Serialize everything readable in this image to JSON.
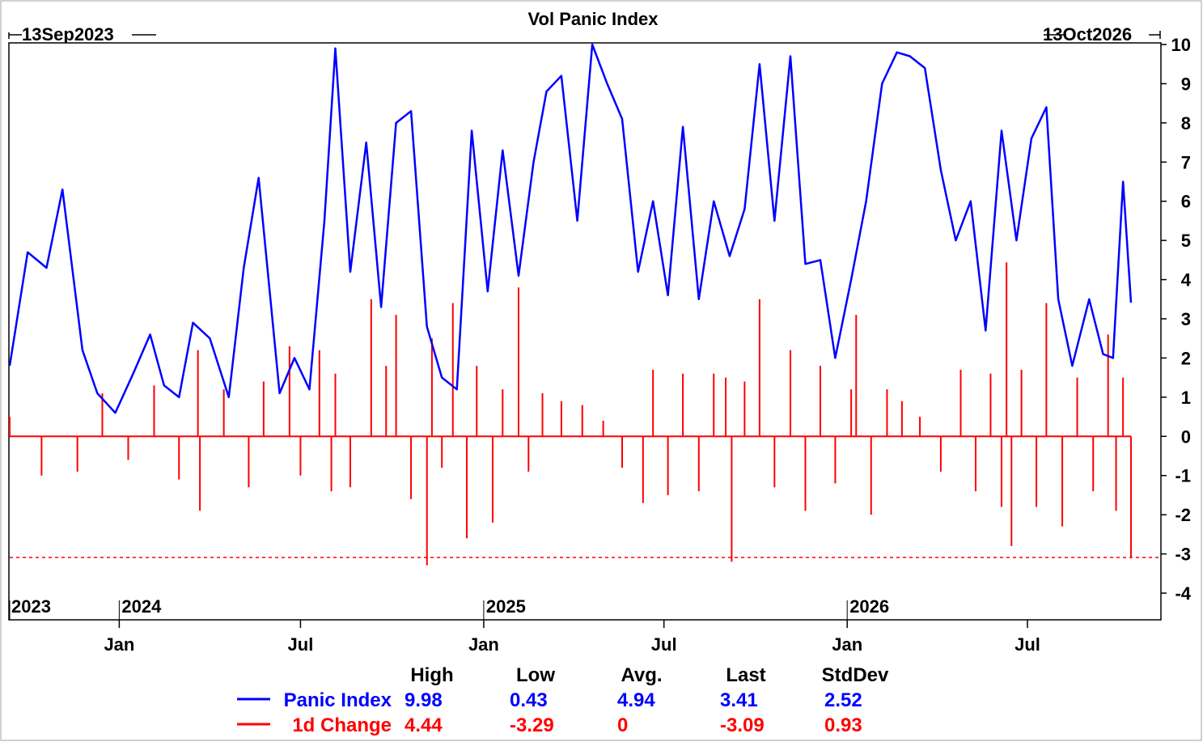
{
  "chart_data": {
    "type": "line",
    "title": "Vol Panic Index",
    "start_date_label": "13Sep2023",
    "end_date_label": "13Oct2026",
    "x_axis": {
      "type": "date",
      "start": "2023-09-13",
      "end": "2026-10-13",
      "month_ticks": [
        {
          "date": "2024-01-01",
          "label": "Jan"
        },
        {
          "date": "2024-07-01",
          "label": "Jul"
        },
        {
          "date": "2025-01-01",
          "label": "Jan"
        },
        {
          "date": "2025-07-01",
          "label": "Jul"
        },
        {
          "date": "2026-01-01",
          "label": "Jan"
        },
        {
          "date": "2026-07-01",
          "label": "Jul"
        }
      ],
      "year_labels": [
        {
          "date": "2023-09-13",
          "label": "2023"
        },
        {
          "date": "2024-01-01",
          "label": "2024"
        },
        {
          "date": "2025-01-01",
          "label": "2025"
        },
        {
          "date": "2026-01-01",
          "label": "2026"
        }
      ]
    },
    "y_axis": {
      "position": "right",
      "ylim": [
        -4,
        10
      ],
      "ticks": [
        10,
        9,
        8,
        7,
        6,
        5,
        4,
        3,
        2,
        1,
        0,
        -1,
        -2,
        -3,
        -4
      ]
    },
    "reference_line": {
      "value": -3.09,
      "style": "dashed",
      "color": "#ff0000"
    },
    "series": [
      {
        "name": "Panic Index",
        "style": "line",
        "color": "#0000ff",
        "points": [
          [
            "2023-09-13",
            1.8
          ],
          [
            "2023-10-01",
            4.7
          ],
          [
            "2023-10-20",
            4.3
          ],
          [
            "2023-11-05",
            6.3
          ],
          [
            "2023-11-25",
            2.2
          ],
          [
            "2023-12-10",
            1.1
          ],
          [
            "2023-12-28",
            0.6
          ],
          [
            "2024-01-15",
            1.6
          ],
          [
            "2024-02-01",
            2.6
          ],
          [
            "2024-02-15",
            1.3
          ],
          [
            "2024-03-01",
            1.0
          ],
          [
            "2024-03-15",
            2.9
          ],
          [
            "2024-04-01",
            2.5
          ],
          [
            "2024-04-20",
            1.0
          ],
          [
            "2024-05-05",
            4.3
          ],
          [
            "2024-05-20",
            6.6
          ],
          [
            "2024-06-10",
            1.1
          ],
          [
            "2024-06-25",
            2.0
          ],
          [
            "2024-07-10",
            1.2
          ],
          [
            "2024-07-25",
            5.5
          ],
          [
            "2024-08-05",
            9.9
          ],
          [
            "2024-08-20",
            4.2
          ],
          [
            "2024-09-05",
            7.5
          ],
          [
            "2024-09-20",
            3.3
          ],
          [
            "2024-10-05",
            8.0
          ],
          [
            "2024-10-20",
            8.3
          ],
          [
            "2024-11-05",
            2.8
          ],
          [
            "2024-11-20",
            1.5
          ],
          [
            "2024-12-05",
            1.2
          ],
          [
            "2024-12-20",
            7.8
          ],
          [
            "2025-01-05",
            3.7
          ],
          [
            "2025-01-20",
            7.3
          ],
          [
            "2025-02-05",
            4.1
          ],
          [
            "2025-02-20",
            7.0
          ],
          [
            "2025-03-05",
            8.8
          ],
          [
            "2025-03-20",
            9.2
          ],
          [
            "2025-04-05",
            5.5
          ],
          [
            "2025-04-20",
            10.0
          ],
          [
            "2025-05-05",
            9.0
          ],
          [
            "2025-05-20",
            8.1
          ],
          [
            "2025-06-05",
            4.2
          ],
          [
            "2025-06-20",
            6.0
          ],
          [
            "2025-07-05",
            3.6
          ],
          [
            "2025-07-20",
            7.9
          ],
          [
            "2025-08-05",
            3.5
          ],
          [
            "2025-08-20",
            6.0
          ],
          [
            "2025-09-05",
            4.6
          ],
          [
            "2025-09-20",
            5.8
          ],
          [
            "2025-10-05",
            9.5
          ],
          [
            "2025-10-20",
            5.5
          ],
          [
            "2025-11-05",
            9.7
          ],
          [
            "2025-11-20",
            4.4
          ],
          [
            "2025-12-05",
            4.5
          ],
          [
            "2025-12-20",
            2.0
          ],
          [
            "2026-01-05",
            4.0
          ],
          [
            "2026-01-20",
            6.0
          ],
          [
            "2026-02-05",
            9.0
          ],
          [
            "2026-02-20",
            9.8
          ],
          [
            "2026-03-05",
            9.7
          ],
          [
            "2026-03-20",
            9.4
          ],
          [
            "2026-04-05",
            6.8
          ],
          [
            "2026-04-20",
            5.0
          ],
          [
            "2026-05-05",
            6.0
          ],
          [
            "2026-05-20",
            2.7
          ],
          [
            "2026-06-05",
            7.8
          ],
          [
            "2026-06-20",
            5.0
          ],
          [
            "2026-07-05",
            7.6
          ],
          [
            "2026-07-20",
            8.4
          ],
          [
            "2026-08-01",
            3.5
          ],
          [
            "2026-08-15",
            1.8
          ],
          [
            "2026-09-01",
            3.5
          ],
          [
            "2026-09-15",
            2.1
          ],
          [
            "2026-09-25",
            2.0
          ],
          [
            "2026-10-05",
            6.5
          ],
          [
            "2026-10-13",
            3.41
          ]
        ]
      },
      {
        "name": "1d Change",
        "style": "spikes",
        "color": "#ff0000",
        "points": [
          [
            "2023-09-13",
            0.5
          ],
          [
            "2023-10-15",
            -1.0
          ],
          [
            "2023-11-20",
            -0.9
          ],
          [
            "2023-12-15",
            1.1
          ],
          [
            "2024-01-10",
            -0.6
          ],
          [
            "2024-02-05",
            1.3
          ],
          [
            "2024-03-01",
            -1.1
          ],
          [
            "2024-03-20",
            2.2
          ],
          [
            "2024-03-22",
            -1.9
          ],
          [
            "2024-04-15",
            1.2
          ],
          [
            "2024-05-10",
            -1.3
          ],
          [
            "2024-05-25",
            1.4
          ],
          [
            "2024-06-20",
            2.3
          ],
          [
            "2024-07-01",
            -1.0
          ],
          [
            "2024-07-20",
            2.2
          ],
          [
            "2024-08-01",
            -1.4
          ],
          [
            "2024-08-05",
            1.6
          ],
          [
            "2024-08-20",
            -1.3
          ],
          [
            "2024-09-10",
            3.5
          ],
          [
            "2024-09-25",
            1.8
          ],
          [
            "2024-10-05",
            3.1
          ],
          [
            "2024-10-20",
            -1.6
          ],
          [
            "2024-11-05",
            -3.29
          ],
          [
            "2024-11-10",
            2.5
          ],
          [
            "2024-11-20",
            -0.8
          ],
          [
            "2024-12-01",
            3.4
          ],
          [
            "2024-12-15",
            -2.6
          ],
          [
            "2024-12-25",
            1.8
          ],
          [
            "2025-01-10",
            -2.2
          ],
          [
            "2025-01-20",
            1.2
          ],
          [
            "2025-02-05",
            3.8
          ],
          [
            "2025-02-15",
            -0.9
          ],
          [
            "2025-03-01",
            1.1
          ],
          [
            "2025-03-20",
            0.9
          ],
          [
            "2025-04-10",
            0.8
          ],
          [
            "2025-05-01",
            0.4
          ],
          [
            "2025-05-20",
            -0.8
          ],
          [
            "2025-06-10",
            -1.7
          ],
          [
            "2025-06-20",
            1.7
          ],
          [
            "2025-07-05",
            -1.5
          ],
          [
            "2025-07-20",
            1.6
          ],
          [
            "2025-08-05",
            -1.4
          ],
          [
            "2025-08-20",
            1.6
          ],
          [
            "2025-09-01",
            1.5
          ],
          [
            "2025-09-07",
            -3.2
          ],
          [
            "2025-09-20",
            1.4
          ],
          [
            "2025-10-05",
            3.5
          ],
          [
            "2025-10-20",
            -1.3
          ],
          [
            "2025-11-05",
            2.2
          ],
          [
            "2025-11-20",
            -1.9
          ],
          [
            "2025-12-05",
            1.8
          ],
          [
            "2025-12-20",
            -1.2
          ],
          [
            "2026-01-05",
            1.2
          ],
          [
            "2026-01-10",
            3.1
          ],
          [
            "2026-01-25",
            -2.0
          ],
          [
            "2026-02-10",
            1.2
          ],
          [
            "2026-02-25",
            0.9
          ],
          [
            "2026-03-15",
            0.5
          ],
          [
            "2026-04-05",
            -0.9
          ],
          [
            "2026-04-25",
            1.7
          ],
          [
            "2026-05-10",
            -1.4
          ],
          [
            "2026-05-25",
            1.6
          ],
          [
            "2026-06-05",
            -1.8
          ],
          [
            "2026-06-10",
            4.44
          ],
          [
            "2026-06-15",
            -2.8
          ],
          [
            "2026-06-25",
            1.7
          ],
          [
            "2026-07-10",
            -1.8
          ],
          [
            "2026-07-20",
            3.4
          ],
          [
            "2026-08-05",
            -2.3
          ],
          [
            "2026-08-20",
            1.5
          ],
          [
            "2026-09-05",
            -1.4
          ],
          [
            "2026-09-20",
            2.6
          ],
          [
            "2026-09-28",
            -1.9
          ],
          [
            "2026-10-05",
            1.5
          ],
          [
            "2026-10-13",
            -3.09
          ]
        ]
      }
    ],
    "stats_table": {
      "headers": [
        "High",
        "Low",
        "Avg.",
        "Last",
        "StdDev"
      ],
      "rows": [
        {
          "name": "Panic Index",
          "color": "#0000ff",
          "values": [
            "9.98",
            "0.43",
            "4.94",
            "3.41",
            "2.52"
          ]
        },
        {
          "name": "1d Change",
          "color": "#ff0000",
          "values": [
            "4.44",
            "-3.29",
            "0",
            "-3.09",
            "0.93"
          ]
        }
      ]
    },
    "grid": false,
    "legend_position": "bottom"
  }
}
